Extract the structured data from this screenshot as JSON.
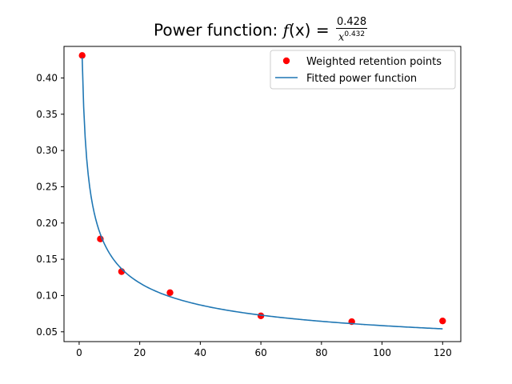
{
  "chart_data": {
    "type": "scatter",
    "title": {
      "prefix": "Power function: ",
      "func": "f",
      "arg": "(x)",
      "equals": " = ",
      "numerator": "0.428",
      "denominator_base": "x",
      "denominator_exp": "0.432"
    },
    "xlabel": "",
    "ylabel": "",
    "xlim": [
      -5,
      126
    ],
    "ylim": [
      0.0365,
      0.4435
    ],
    "xticks": [
      0,
      20,
      40,
      60,
      80,
      100,
      120
    ],
    "yticks": [
      0.05,
      0.1,
      0.15,
      0.2,
      0.25,
      0.3,
      0.35,
      0.4
    ],
    "grid": false,
    "legend_position": "top-right",
    "series": [
      {
        "name": "Weighted retention points",
        "kind": "scatter",
        "color": "#ff0000",
        "x": [
          1,
          7,
          14,
          30,
          60,
          90,
          120
        ],
        "y": [
          0.431,
          0.178,
          0.133,
          0.104,
          0.072,
          0.064,
          0.065
        ]
      },
      {
        "name": "Fitted power function",
        "kind": "line",
        "color": "#1f77b4",
        "coefficient": 0.428,
        "exponent": 0.432,
        "x_range": [
          1,
          120
        ]
      }
    ]
  }
}
